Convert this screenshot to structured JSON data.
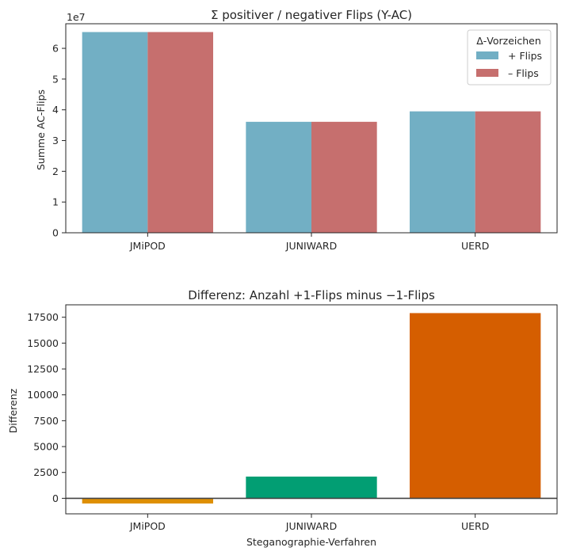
{
  "chart_data": [
    {
      "type": "bar",
      "title": "Σ positiver / negativer Flips (Y-AC)",
      "xlabel": "",
      "ylabel": "Summe AC-Flips",
      "y_offset_label": "1e7",
      "y_scale_factor": 10000000,
      "categories": [
        "JMiPOD",
        "JUNIWARD",
        "UERD"
      ],
      "series": [
        {
          "name": "+ Flips",
          "color": "#72afc4",
          "values": [
            65300000,
            36100000,
            39500000
          ]
        },
        {
          "name": "– Flips",
          "color": "#c66f6e",
          "values": [
            65300000,
            36100000,
            39500000
          ]
        }
      ],
      "ylim": [
        0,
        68000000
      ],
      "yticks": [
        0,
        10000000,
        20000000,
        30000000,
        40000000,
        50000000,
        60000000
      ],
      "ytick_labels": [
        "0",
        "1",
        "2",
        "3",
        "4",
        "5",
        "6"
      ],
      "legend": {
        "title": "Δ-Vorzeichen",
        "placement": "top-right"
      },
      "grid": false
    },
    {
      "type": "bar",
      "title": "Differenz: Anzahl +1-Flips minus −1-Flips",
      "xlabel": "Steganographie-Verfahren",
      "ylabel": "Differenz",
      "categories": [
        "JMiPOD",
        "JUNIWARD",
        "UERD"
      ],
      "values": [
        -500,
        2100,
        17900
      ],
      "colors": [
        "#de8f05",
        "#029e73",
        "#d55e00"
      ],
      "ylim": [
        -1500,
        18700
      ],
      "yticks": [
        0,
        2500,
        5000,
        7500,
        10000,
        12500,
        15000,
        17500
      ],
      "ytick_labels": [
        "0",
        "2500",
        "5000",
        "7500",
        "10000",
        "12500",
        "15000",
        "17500"
      ],
      "zero_line": true,
      "grid": false
    }
  ]
}
